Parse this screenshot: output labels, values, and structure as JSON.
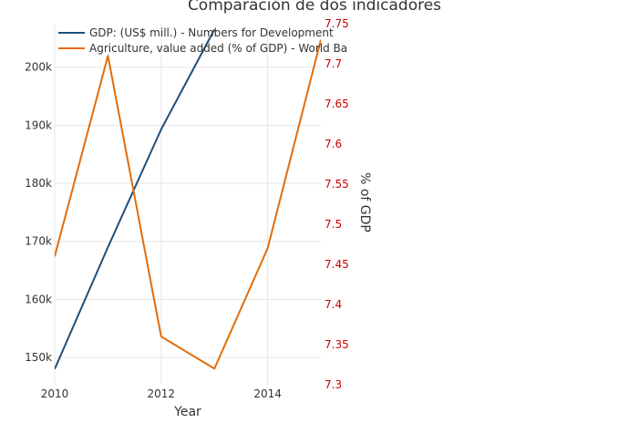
{
  "chart_data": {
    "type": "line",
    "title": "Comparación de dos indicadores",
    "xlabel": "Year",
    "ylabel_left": "",
    "ylabel_right": "% of GDP",
    "x_range": [
      2010,
      2015
    ],
    "x_ticks": [
      2010,
      2012,
      2014
    ],
    "x_tick_labels": [
      "2010",
      "2012",
      "2014"
    ],
    "y_left_range": [
      145300,
      207500
    ],
    "y_left_ticks": [
      150000,
      160000,
      170000,
      180000,
      190000,
      200000
    ],
    "y_left_tick_labels": [
      "150k",
      "160k",
      "170k",
      "180k",
      "190k",
      "200k"
    ],
    "y_right_range": [
      7.3,
      7.75
    ],
    "y_right_ticks": [
      7.3,
      7.35,
      7.4,
      7.45,
      7.5,
      7.55,
      7.6,
      7.65,
      7.7,
      7.75
    ],
    "y_right_tick_labels": [
      "7.3",
      "7.35",
      "7.4",
      "7.45",
      "7.5",
      "7.55",
      "7.6",
      "7.65",
      "7.7",
      "7.75"
    ],
    "grid": true,
    "legend_position": "top-left",
    "series": [
      {
        "name": "GDP: (US$ mill.) - Numbers for Development",
        "axis": "left",
        "color": "#1f4e79",
        "x": [
          2010,
          2011,
          2012,
          2013
        ],
        "y": [
          148000,
          169000,
          189300,
          206500
        ]
      },
      {
        "name": "Agriculture, value added (% of GDP) -  World Ba",
        "axis": "right",
        "color": "#e36c0a",
        "x": [
          2010,
          2011,
          2012,
          2013,
          2014,
          2015
        ],
        "y": [
          7.46,
          7.71,
          7.36,
          7.32,
          7.47,
          7.73
        ]
      }
    ],
    "colors": {
      "right_axis_ticks": "#cc0000",
      "grid": "#e6e6e6",
      "text": "#333333"
    }
  }
}
